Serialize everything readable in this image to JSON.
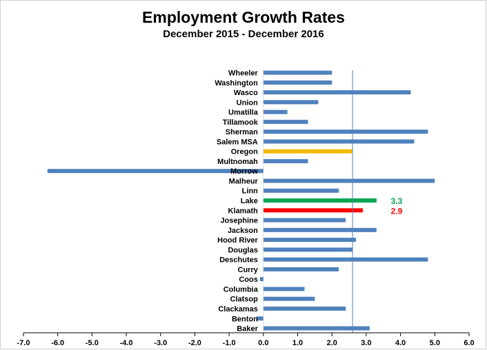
{
  "chart_data": {
    "type": "bar",
    "orientation": "horizontal",
    "title": "Employment Growth Rates",
    "subtitle": "December 2015 - December 2016",
    "categories": [
      "Wheeler",
      "Washington",
      "Wasco",
      "Union",
      "Umatilla",
      "Tillamook",
      "Sherman",
      "Salem MSA",
      "Oregon",
      "Multnomah",
      "Morrow",
      "Malheur",
      "Linn",
      "Lake",
      "Klamath",
      "Josephine",
      "Jackson",
      "Hood River",
      "Douglas",
      "Deschutes",
      "Curry",
      "Coos",
      "Columbia",
      "Clatsop",
      "Clackamas",
      "Benton",
      "Baker"
    ],
    "values": [
      2.0,
      2.0,
      4.3,
      1.6,
      0.7,
      1.3,
      4.8,
      4.4,
      2.6,
      1.3,
      -6.3,
      5.0,
      2.2,
      3.3,
      2.9,
      2.4,
      3.3,
      2.7,
      2.6,
      4.8,
      2.2,
      -0.1,
      1.2,
      1.5,
      2.4,
      -0.2,
      3.1
    ],
    "bar_colors": {
      "default": "#4f81bd",
      "Oregon": "#f5b800",
      "Lake": "#00a650",
      "Klamath": "#ff0000"
    },
    "data_labels": [
      {
        "category": "Lake",
        "text": "3.3",
        "color": "#00a650"
      },
      {
        "category": "Klamath",
        "text": "2.9",
        "color": "#ff0000"
      }
    ],
    "reference_line": {
      "value": 2.6,
      "color": "#4f81bd"
    },
    "xlim": [
      -7.0,
      6.0
    ],
    "xticks": [
      "-7.0",
      "-6.0",
      "-5.0",
      "-4.0",
      "-3.0",
      "-2.0",
      "-1.0",
      "0.0",
      "1.0",
      "2.0",
      "3.0",
      "4.0",
      "5.0",
      "6.0"
    ],
    "grid": false,
    "legend": "none"
  }
}
